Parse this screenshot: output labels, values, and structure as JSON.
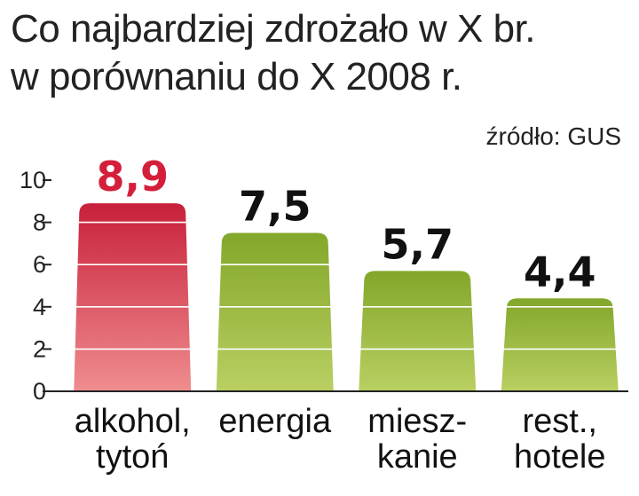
{
  "title_lines": [
    "Co najbardziej zdrożało w X br.",
    "w porównaniu do X 2008 r."
  ],
  "source": "źródło: GUS",
  "colors": {
    "highlight_top": "#c8203a",
    "highlight_bottom": "#ef8d8f",
    "bar_top": "#83a72a",
    "bar_bottom": "#b9cf62",
    "highlight_label": "#d41f3a",
    "label": "#111111",
    "gridline": "#ffffff",
    "axis": "#222222"
  },
  "chart_data": {
    "type": "bar",
    "categories": [
      [
        "alkohol,",
        "tytoń"
      ],
      [
        "energia"
      ],
      [
        "miesz-",
        "kanie"
      ],
      [
        "rest.,",
        "hotele"
      ]
    ],
    "values": [
      8.9,
      7.5,
      5.7,
      4.4
    ],
    "value_labels": [
      "8,9",
      "7,5",
      "5,7",
      "4,4"
    ],
    "highlight_index": 0,
    "ylim": [
      0,
      10
    ],
    "yticks": [
      0,
      2,
      4,
      6,
      8,
      10
    ],
    "grid": true
  }
}
